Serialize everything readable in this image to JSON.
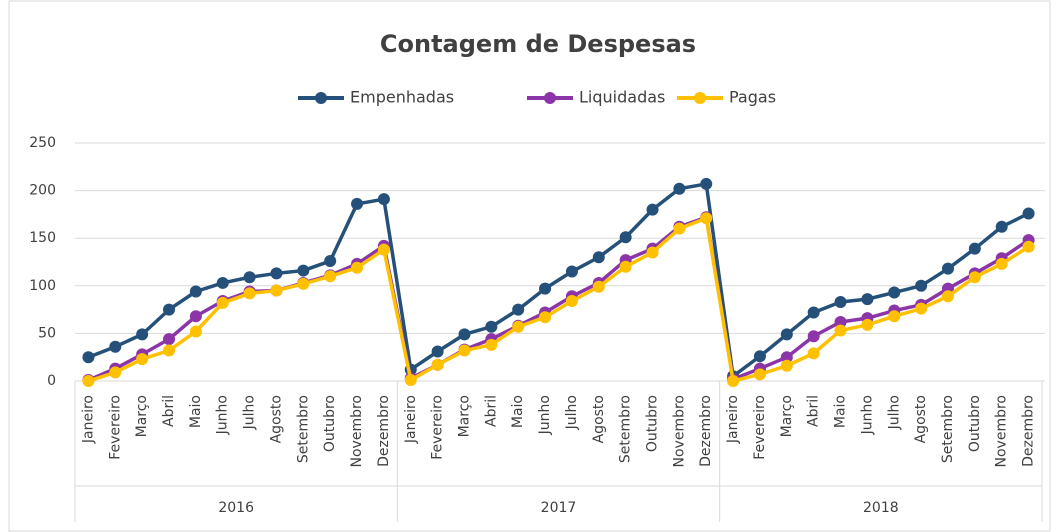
{
  "chart_data": {
    "type": "line",
    "title": "Contagem de Despesas",
    "categories": [
      "Janeiro",
      "Fevereiro",
      "Março",
      "Abril",
      "Maio",
      "Junho",
      "Julho",
      "Agosto",
      "Setembro",
      "Outubro",
      "Novembro",
      "Dezembro",
      "Janeiro",
      "Fevereiro",
      "Março",
      "Abril",
      "Maio",
      "Junho",
      "Julho",
      "Agosto",
      "Setembro",
      "Outubro",
      "Novembro",
      "Dezembro",
      "Janeiro",
      "Fevereiro",
      "Março",
      "Abril",
      "Maio",
      "Junho",
      "Julho",
      "Agosto",
      "Setembro",
      "Outubro",
      "Novembro",
      "Dezembro"
    ],
    "category_groups": [
      "2016",
      "2017",
      "2018"
    ],
    "series": [
      {
        "name": "Empenhadas",
        "color": "#24507a",
        "values": [
          25,
          36,
          49,
          75,
          94,
          103,
          109,
          113,
          116,
          126,
          186,
          191,
          12,
          31,
          49,
          57,
          75,
          97,
          115,
          130,
          151,
          180,
          202,
          207,
          5,
          26,
          49,
          72,
          83,
          86,
          93,
          100,
          118,
          139,
          162,
          176
        ]
      },
      {
        "name": "Liquidadas",
        "color": "#8b35a8",
        "values": [
          1,
          13,
          28,
          44,
          68,
          84,
          94,
          95,
          103,
          111,
          123,
          142,
          3,
          17,
          33,
          44,
          58,
          72,
          89,
          103,
          127,
          139,
          162,
          172,
          2,
          13,
          25,
          47,
          62,
          66,
          74,
          80,
          97,
          113,
          129,
          148
        ]
      },
      {
        "name": "Pagas",
        "color": "#ffc000",
        "values": [
          0,
          9,
          23,
          32,
          52,
          82,
          92,
          95,
          102,
          110,
          119,
          138,
          1,
          17,
          32,
          38,
          57,
          67,
          84,
          99,
          120,
          135,
          160,
          171,
          0,
          7,
          16,
          29,
          53,
          59,
          68,
          76,
          89,
          109,
          123,
          141
        ]
      }
    ],
    "ylim": [
      0,
      250
    ],
    "yticks": [
      0,
      50,
      100,
      150,
      200,
      250
    ],
    "grid": true,
    "legend": "top"
  }
}
